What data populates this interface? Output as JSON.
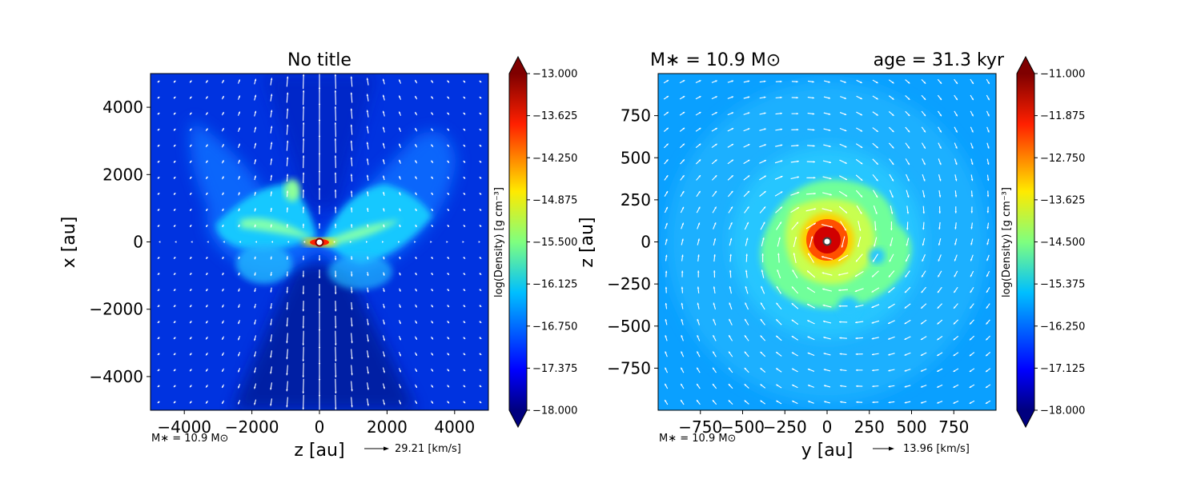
{
  "chart_data": [
    {
      "type": "heatmap",
      "panel": "left",
      "title": "No title",
      "xlabel": "z [au]",
      "ylabel": "x [au]",
      "xlim": [
        -5000,
        5000
      ],
      "ylim": [
        -5000,
        5000
      ],
      "xticks": [
        -4000,
        -2000,
        0,
        2000,
        4000
      ],
      "yticks": [
        -4000,
        -2000,
        0,
        2000,
        4000
      ],
      "xtick_labels": [
        "−4000",
        "−2000",
        "0",
        "2000",
        "4000"
      ],
      "ytick_labels": [
        "−4000",
        "−2000",
        "0",
        "2000",
        "4000"
      ],
      "colorbar": {
        "label": "log(Density) [g cm⁻³]",
        "range": [
          -18.0,
          -13.0
        ],
        "ticks": [
          -13.0,
          -13.625,
          -14.25,
          -14.875,
          -15.5,
          -16.125,
          -16.75,
          -17.375,
          -18.0
        ],
        "tick_labels": [
          "−13.000",
          "−13.625",
          "−14.250",
          "−14.875",
          "−15.500",
          "−16.125",
          "−16.750",
          "−17.375",
          "−18.000"
        ]
      },
      "annotation_mass": "M∗ = 10.9 M⊙",
      "velocity_key": "29.21 [km/s]",
      "velocity_key_value": 29.21,
      "grid": false
    },
    {
      "type": "heatmap",
      "panel": "right",
      "title_left": "M∗ = 10.9 M⊙",
      "title_right": "age = 31.3 kyr",
      "xlabel": "y [au]",
      "ylabel": "z [au]",
      "xlim": [
        -1000,
        1000
      ],
      "ylim": [
        -1000,
        1000
      ],
      "xticks": [
        -750,
        -500,
        -250,
        0,
        250,
        500,
        750
      ],
      "yticks": [
        -750,
        -500,
        -250,
        0,
        250,
        500,
        750
      ],
      "xtick_labels": [
        "−750",
        "−500",
        "−250",
        "0",
        "250",
        "500",
        "750"
      ],
      "ytick_labels": [
        "−750",
        "−500",
        "−250",
        "0",
        "250",
        "500",
        "750"
      ],
      "colorbar": {
        "label": "log(Density) [g cm⁻³]",
        "range": [
          -18.0,
          -11.0
        ],
        "ticks": [
          -11.0,
          -11.875,
          -12.75,
          -13.625,
          -14.5,
          -15.375,
          -16.25,
          -17.125,
          -18.0
        ],
        "tick_labels": [
          "−11.000",
          "−11.875",
          "−12.750",
          "−13.625",
          "−14.500",
          "−15.375",
          "−16.250",
          "−17.125",
          "−18.000"
        ]
      },
      "annotation_mass": "M∗ = 10.9 M⊙",
      "velocity_key": "13.96 [km/s]",
      "velocity_key_value": 13.96,
      "grid": false
    }
  ]
}
